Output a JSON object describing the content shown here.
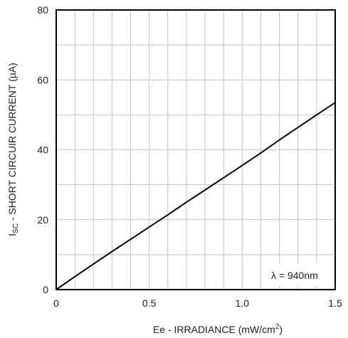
{
  "chart_data": {
    "type": "line",
    "xlabel_main": "Ee - IRRADIANCE (mW/cm",
    "xlabel_sup": "2",
    "xlabel_tail": ")",
    "ylabel_sub": "SC",
    "ylabel_prefix": "I",
    "ylabel_main": " - SHORT CIRCUIR CURRENT (µA)",
    "xlim": [
      0,
      1.5
    ],
    "ylim": [
      0,
      80
    ],
    "x_ticks": [
      0,
      0.5,
      1.0,
      1.5
    ],
    "x_tick_labels": [
      "0",
      "0.5",
      "1.0",
      "1.5"
    ],
    "y_ticks": [
      0,
      20,
      40,
      60,
      80
    ],
    "y_tick_labels": [
      "0",
      "20",
      "40",
      "60",
      "80"
    ],
    "grid": true,
    "annotation": "λ = 940nm",
    "series": [
      {
        "x": [
          0,
          0.1,
          0.2,
          0.3,
          0.4,
          0.5,
          0.6,
          0.7,
          0.8,
          0.9,
          1.0,
          1.1,
          1.2,
          1.3,
          1.4,
          1.5
        ],
        "y": [
          0,
          3.7,
          7.3,
          10.9,
          14.4,
          17.9,
          21.4,
          25.0,
          28.5,
          32.0,
          35.5,
          39.1,
          42.8,
          46.4,
          50.0,
          53.5
        ]
      }
    ]
  }
}
